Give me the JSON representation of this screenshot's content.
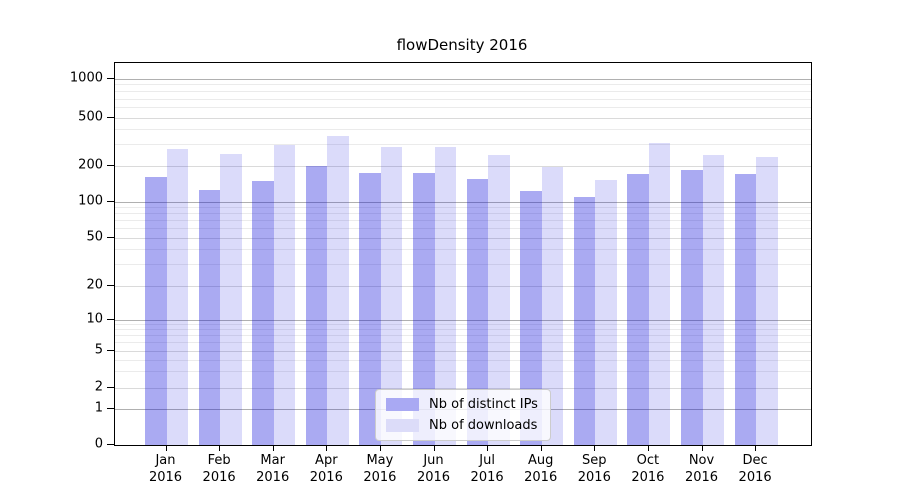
{
  "title": "flowDensity 2016",
  "chart_data": {
    "type": "bar",
    "title": "flowDensity 2016",
    "xlabel": "",
    "ylabel": "",
    "yscale": "symlog (log above 1, compressed linear segment 0-1)",
    "ylim": [
      0,
      1400
    ],
    "y_ticks": [
      0,
      1,
      2,
      5,
      10,
      20,
      50,
      100,
      200,
      500,
      1000
    ],
    "grid": "on (decade lines darker, log minor lines faint)",
    "categories": [
      "Jan",
      "Feb",
      "Mar",
      "Apr",
      "May",
      "Jun",
      "Jul",
      "Aug",
      "Sep",
      "Oct",
      "Nov",
      "Dec"
    ],
    "category_year": "2016",
    "series": [
      {
        "name": "Nb of distinct IPs",
        "legend_color": "#a9a9f3",
        "fill": "rgba(11,11,219,0.35)",
        "values": [
          162,
          126,
          149,
          201,
          176,
          176,
          155,
          124,
          111,
          172,
          186,
          172
        ]
      },
      {
        "name": "Nb of downloads",
        "legend_color": "#dcdcf9",
        "fill": "rgba(11,11,219,0.15)",
        "values": [
          277,
          250,
          300,
          355,
          288,
          290,
          246,
          197,
          154,
          310,
          248,
          237
        ]
      }
    ],
    "legend_position": "lower center, inside axes",
    "colors": {
      "decade_gridline": "#b0b0b0",
      "labeled_gridline": "#dadada",
      "minor_gridline": "#ebebeb",
      "axes_frame": "#000000"
    }
  }
}
